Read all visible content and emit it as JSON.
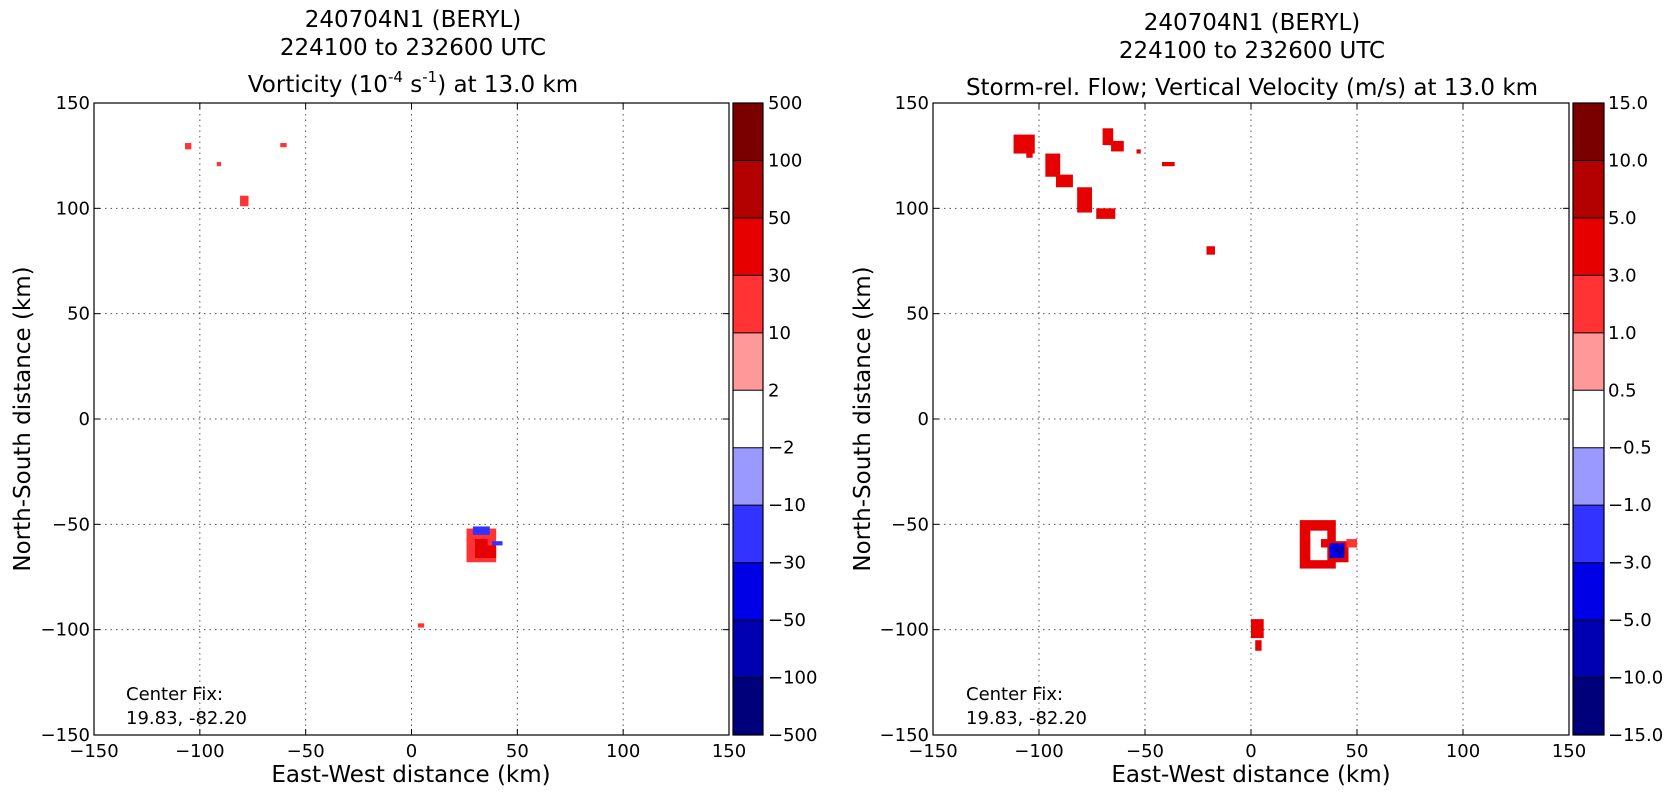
{
  "figure": {
    "center_fix_label": "Center Fix:",
    "center_fix_value": "19.83, -82.20"
  },
  "chart_data": [
    {
      "type": "heatmap",
      "title_line1": "240704N1 (BERYL)",
      "title_line2": "224100 to 232600 UTC",
      "title_line3_pre": "Vorticity (10",
      "title_line3_sup1": "-4",
      "title_line3_mid": " s",
      "title_line3_sup2": "-1",
      "title_line3_post": ") at 13.0 km",
      "xlabel": "East-West distance (km)",
      "ylabel": "North-South distance (km)",
      "xlim": [
        -150,
        150
      ],
      "ylim": [
        -150,
        150
      ],
      "x_ticks": [
        -150,
        -100,
        -50,
        0,
        50,
        100,
        150
      ],
      "y_ticks": [
        -150,
        -100,
        -50,
        0,
        50,
        100,
        150
      ],
      "x_tick_labels": [
        "−150",
        "−100",
        "−50",
        "0",
        "50",
        "100",
        "150"
      ],
      "y_tick_labels": [
        "−150",
        "−100",
        "−50",
        "0",
        "50",
        "100",
        "150"
      ],
      "grid": true,
      "colorbar_labels": [
        "500",
        "100",
        "50",
        "30",
        "10",
        "2",
        "−2",
        "−10",
        "−30",
        "−50",
        "−100",
        "−500"
      ],
      "colorbar_colors": [
        "#7a0000",
        "#b30000",
        "#e60000",
        "#ff3333",
        "#ff9999",
        "#ffffff",
        "#9999ff",
        "#3333ff",
        "#0000e6",
        "#0000b3",
        "#00007a"
      ],
      "patches": [
        {
          "x": [
            -107,
            -104
          ],
          "y": [
            128,
            131
          ],
          "level": 2
        },
        {
          "x": [
            -62,
            -59
          ],
          "y": [
            129,
            131
          ],
          "level": 2
        },
        {
          "x": [
            -92,
            -90
          ],
          "y": [
            120,
            122
          ],
          "level": 2
        },
        {
          "x": [
            -81,
            -77
          ],
          "y": [
            101,
            106
          ],
          "level": 2
        },
        {
          "x": [
            26,
            40
          ],
          "y": [
            -68,
            -52
          ],
          "level": 2
        },
        {
          "x": [
            30,
            40
          ],
          "y": [
            -66,
            -60
          ],
          "level": 3
        },
        {
          "x": [
            30,
            36
          ],
          "y": [
            -61,
            -57
          ],
          "level": 3
        },
        {
          "x": [
            38,
            43
          ],
          "y": [
            -60,
            -58
          ],
          "level": -2
        },
        {
          "x": [
            29,
            37
          ],
          "y": [
            -55,
            -51
          ],
          "level": -2
        },
        {
          "x": [
            3,
            6
          ],
          "y": [
            -99,
            -97
          ],
          "level": 2
        }
      ]
    },
    {
      "type": "heatmap",
      "title_line1": "240704N1 (BERYL)",
      "title_line2": "224100 to 232600 UTC",
      "title_line3": "Storm-rel. Flow; Vertical Velocity (m/s) at 13.0 km",
      "xlabel": "East-West distance (km)",
      "ylabel": "North-South distance (km)",
      "xlim": [
        -150,
        150
      ],
      "ylim": [
        -150,
        150
      ],
      "x_ticks": [
        -150,
        -100,
        -50,
        0,
        50,
        100,
        150
      ],
      "y_ticks": [
        -150,
        -100,
        -50,
        0,
        50,
        100,
        150
      ],
      "x_tick_labels": [
        "−150",
        "−100",
        "−50",
        "0",
        "50",
        "100",
        "150"
      ],
      "y_tick_labels": [
        "−150",
        "−100",
        "−50",
        "0",
        "50",
        "100",
        "150"
      ],
      "grid": true,
      "colorbar_labels": [
        "15.0",
        "10.0",
        "5.0",
        "3.0",
        "1.0",
        "0.5",
        "−0.5",
        "−1.0",
        "−3.0",
        "−5.0",
        "−10.0",
        "−15.0"
      ],
      "colorbar_colors": [
        "#7a0000",
        "#b30000",
        "#e60000",
        "#ff3333",
        "#ff9999",
        "#ffffff",
        "#9999ff",
        "#3333ff",
        "#0000e6",
        "#0000b3",
        "#00007a"
      ],
      "patches": [
        {
          "x": [
            -112,
            -102
          ],
          "y": [
            126,
            135
          ],
          "level": 3
        },
        {
          "x": [
            -106,
            -103
          ],
          "y": [
            124,
            128
          ],
          "level": 3
        },
        {
          "x": [
            -97,
            -90
          ],
          "y": [
            115,
            126
          ],
          "level": 3
        },
        {
          "x": [
            -92,
            -84
          ],
          "y": [
            110,
            116
          ],
          "level": 3
        },
        {
          "x": [
            -82,
            -75
          ],
          "y": [
            98,
            110
          ],
          "level": 3
        },
        {
          "x": [
            -73,
            -64
          ],
          "y": [
            95,
            100
          ],
          "level": 3
        },
        {
          "x": [
            -70,
            -65
          ],
          "y": [
            130,
            138
          ],
          "level": 3
        },
        {
          "x": [
            -66,
            -60
          ],
          "y": [
            127,
            132
          ],
          "level": 3
        },
        {
          "x": [
            -54,
            -52
          ],
          "y": [
            126,
            128
          ],
          "level": 3
        },
        {
          "x": [
            -42,
            -36
          ],
          "y": [
            120,
            122
          ],
          "level": 3
        },
        {
          "x": [
            -21,
            -17
          ],
          "y": [
            78,
            82
          ],
          "level": 3
        },
        {
          "x": [
            23,
            40
          ],
          "y": [
            -71,
            -48
          ],
          "level": 3
        },
        {
          "x": [
            38,
            46
          ],
          "y": [
            -68,
            -58
          ],
          "level": 3
        },
        {
          "x": [
            45,
            50
          ],
          "y": [
            -61,
            -57
          ],
          "level": 2
        },
        {
          "x": [
            28,
            36
          ],
          "y": [
            -67,
            -53
          ],
          "level": 0
        },
        {
          "x": [
            33,
            37
          ],
          "y": [
            -61,
            -57
          ],
          "level": 3
        },
        {
          "x": [
            37,
            44
          ],
          "y": [
            -66,
            -59
          ],
          "level": -3
        },
        {
          "x": [
            40,
            44
          ],
          "y": [
            -64,
            -61
          ],
          "level": -4
        },
        {
          "x": [
            0,
            6
          ],
          "y": [
            -104,
            -95
          ],
          "level": 3
        },
        {
          "x": [
            2,
            5
          ],
          "y": [
            -110,
            -105
          ],
          "level": 3
        }
      ]
    }
  ]
}
